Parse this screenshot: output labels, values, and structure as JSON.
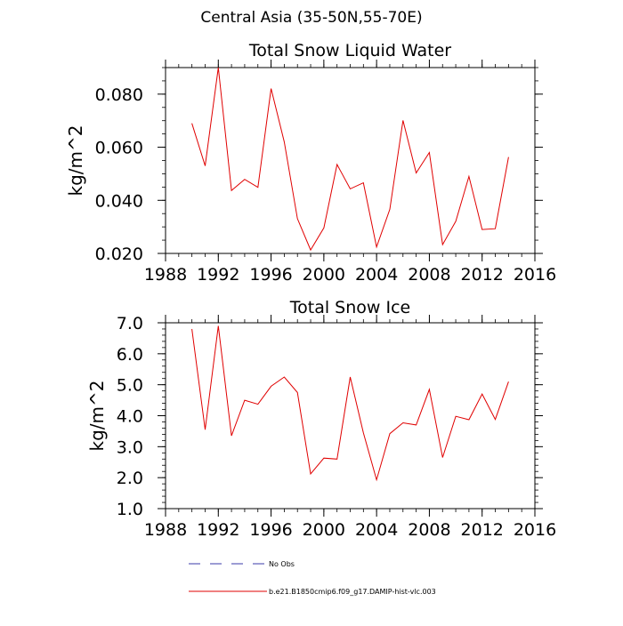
{
  "figure_title": "Central Asia (35-50N,55-70E)",
  "legend": [
    {
      "label": "No Obs",
      "style": "dashed",
      "color": "#3a3aa8"
    },
    {
      "label": "b.e21.B1850cmip6.f09_g17.DAMIP-hist-vlc.003",
      "style": "solid",
      "color": "#e00000"
    }
  ],
  "chart_data": [
    {
      "type": "line",
      "title": "Total Snow Liquid Water",
      "xlabel": "",
      "ylabel": "kg/m^2",
      "xlim": [
        1988,
        2016
      ],
      "ylim": [
        0.02,
        0.09
      ],
      "xticks": [
        1988,
        1992,
        1996,
        2000,
        2004,
        2008,
        2012,
        2016
      ],
      "xtick_labels": [
        "1988",
        "1992",
        "1996",
        "2000",
        "2004",
        "2008",
        "2012",
        "2016"
      ],
      "yticks": [
        0.02,
        0.04,
        0.06,
        0.08
      ],
      "ytick_labels": [
        "0.020",
        "0.040",
        "0.060",
        "0.080"
      ],
      "x_minor_step": 1,
      "y_minor_step": 0.005,
      "series": [
        {
          "name": "b.e21.B1850cmip6.f09_g17.DAMIP-hist-vlc.003",
          "color": "#e00000",
          "x": [
            1990,
            1991,
            1992,
            1993,
            1994,
            1995,
            1996,
            1997,
            1998,
            1999,
            2000,
            2001,
            2002,
            2003,
            2004,
            2005,
            2006,
            2007,
            2008,
            2009,
            2010,
            2011,
            2012,
            2013,
            2014
          ],
          "values": [
            0.069,
            0.053,
            0.09,
            0.0437,
            0.0479,
            0.0449,
            0.0821,
            0.062,
            0.0331,
            0.0213,
            0.0296,
            0.0535,
            0.0443,
            0.0466,
            0.0224,
            0.0366,
            0.0701,
            0.0503,
            0.058,
            0.0233,
            0.0321,
            0.049,
            0.029,
            0.0293,
            0.0563
          ]
        }
      ]
    },
    {
      "type": "line",
      "title": "Total Snow Ice",
      "xlabel": "",
      "ylabel": "kg/m^2",
      "xlim": [
        1988,
        2016
      ],
      "ylim": [
        1.0,
        7.0
      ],
      "xticks": [
        1988,
        1992,
        1996,
        2000,
        2004,
        2008,
        2012,
        2016
      ],
      "xtick_labels": [
        "1988",
        "1992",
        "1996",
        "2000",
        "2004",
        "2008",
        "2012",
        "2016"
      ],
      "yticks": [
        1,
        2,
        3,
        4,
        5,
        6,
        7
      ],
      "ytick_labels": [
        "1.0",
        "2.0",
        "3.0",
        "4.0",
        "5.0",
        "6.0",
        "7.0"
      ],
      "x_minor_step": 1,
      "y_minor_step": 0.2,
      "series": [
        {
          "name": "b.e21.B1850cmip6.f09_g17.DAMIP-hist-vlc.003",
          "color": "#e00000",
          "x": [
            1990,
            1991,
            1992,
            1993,
            1994,
            1995,
            1996,
            1997,
            1998,
            1999,
            2000,
            2001,
            2002,
            2003,
            2004,
            2005,
            2006,
            2007,
            2008,
            2009,
            2010,
            2011,
            2012,
            2013,
            2014
          ],
          "values": [
            6.8,
            3.55,
            6.9,
            3.35,
            4.5,
            4.37,
            4.95,
            5.25,
            4.75,
            2.12,
            2.63,
            2.6,
            5.25,
            3.45,
            1.93,
            3.42,
            3.77,
            3.7,
            4.85,
            2.65,
            3.98,
            3.87,
            4.7,
            3.88,
            5.1
          ]
        }
      ]
    }
  ]
}
